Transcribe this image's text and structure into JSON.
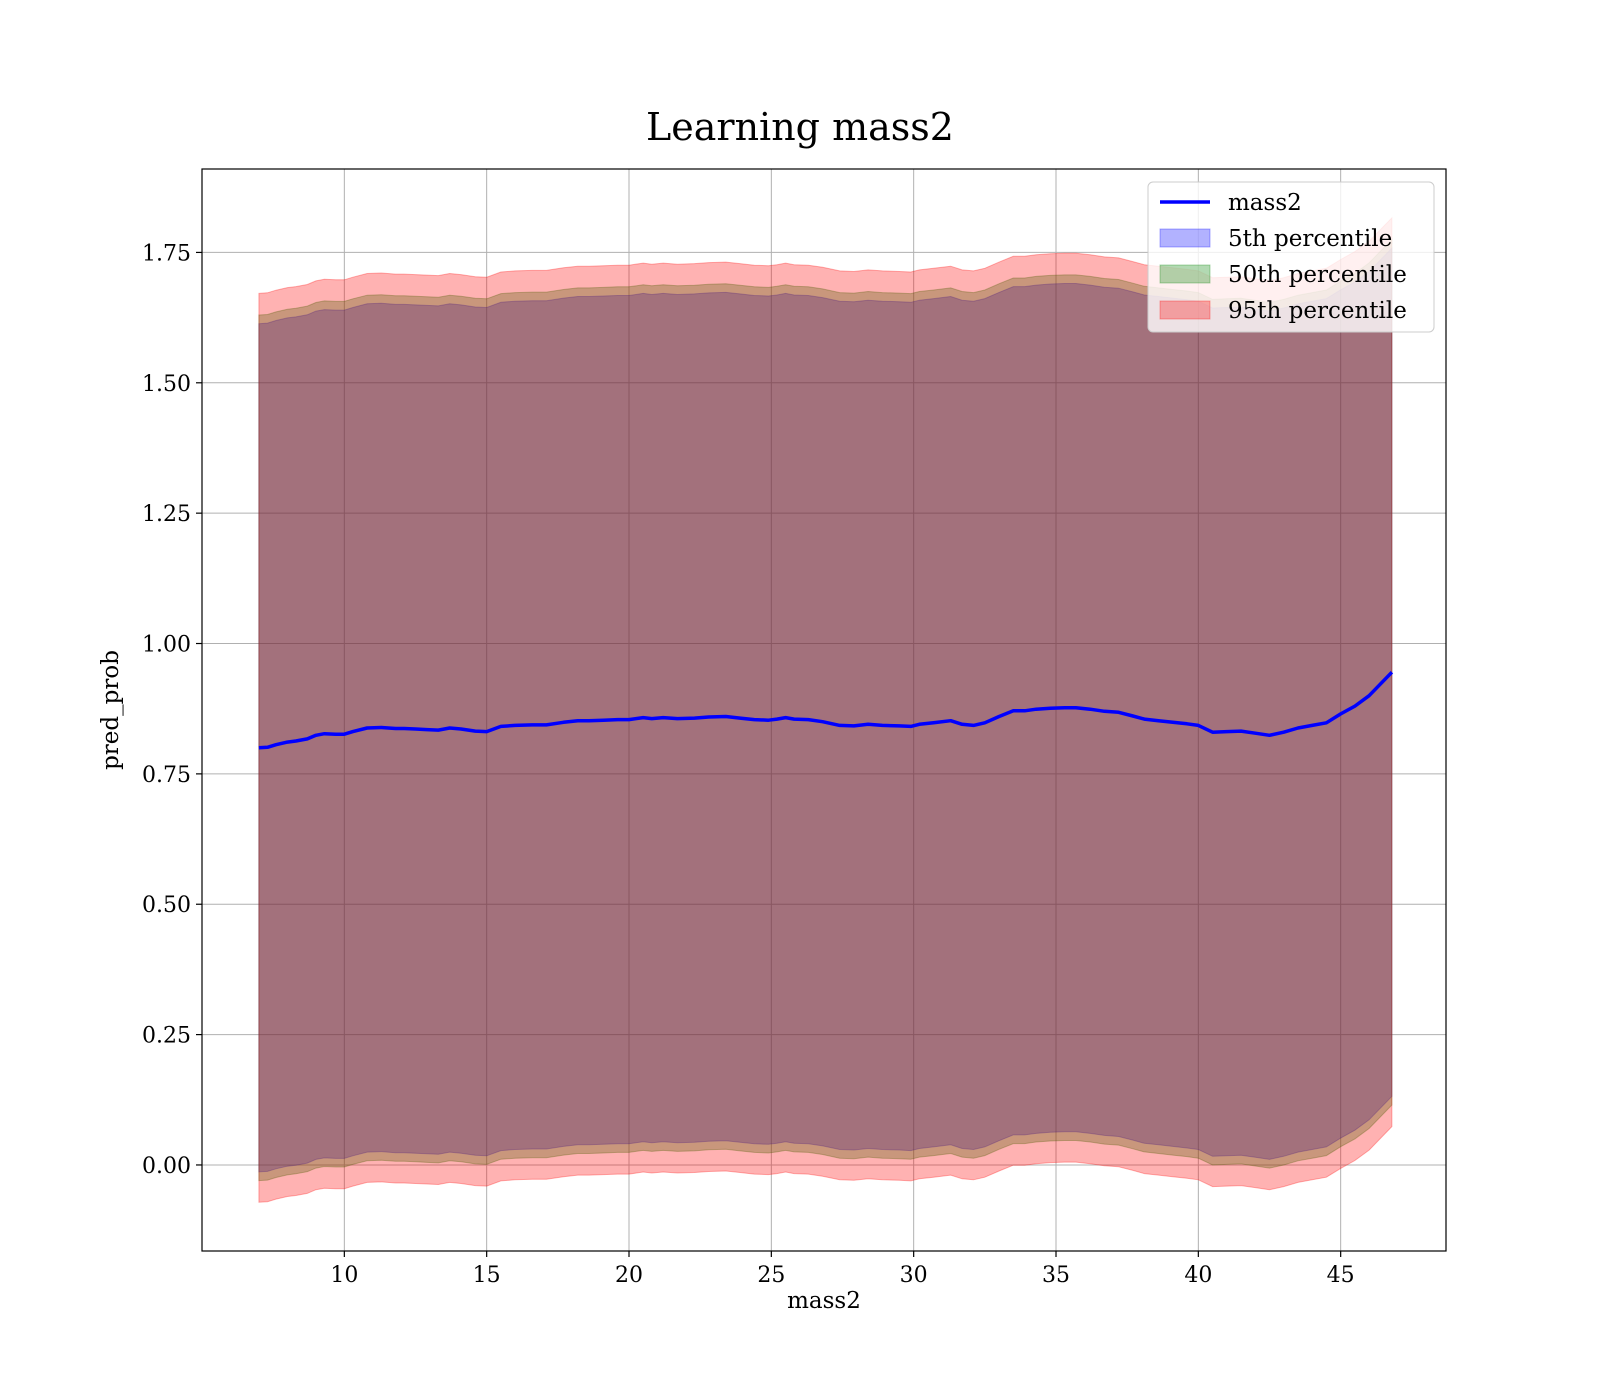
{
  "chart_data": {
    "type": "area",
    "title": "Learning mass2",
    "xlabel": "mass2",
    "ylabel": "pred_prob",
    "xlim": [
      5.0,
      48.7
    ],
    "ylim": [
      -0.165,
      1.91
    ],
    "xticks": [
      10,
      15,
      20,
      25,
      30,
      35,
      40,
      45
    ],
    "yticks": [
      0.0,
      0.25,
      0.5,
      0.75,
      1.0,
      1.25,
      1.5,
      1.75
    ],
    "ytick_labels": [
      "0.00",
      "0.25",
      "0.50",
      "0.75",
      "1.00",
      "1.25",
      "1.50",
      "1.75"
    ],
    "grid": true,
    "legend_position": "top-right",
    "x": [
      7.0,
      7.3,
      7.6,
      8.0,
      8.3,
      8.7,
      9.0,
      9.3,
      9.7,
      10.0,
      10.3,
      10.8,
      11.3,
      11.8,
      12.1,
      12.5,
      12.9,
      13.3,
      13.7,
      14.1,
      14.6,
      15.0,
      15.5,
      16.0,
      16.6,
      17.1,
      17.7,
      18.2,
      18.6,
      19.1,
      19.6,
      20.0,
      20.5,
      20.8,
      21.2,
      21.7,
      22.3,
      22.8,
      23.4,
      23.9,
      24.4,
      24.9,
      25.2,
      25.5,
      25.8,
      26.3,
      26.8,
      27.4,
      27.9,
      28.4,
      28.9,
      29.5,
      29.9,
      30.2,
      30.7,
      31.3,
      31.7,
      32.1,
      32.5,
      33.0,
      33.5,
      33.9,
      34.3,
      34.8,
      35.3,
      35.7,
      36.2,
      36.7,
      37.2,
      37.7,
      38.1,
      38.6,
      39.1,
      39.6,
      40.0,
      40.5,
      41.0,
      41.5,
      42.0,
      42.5,
      43.0,
      43.5,
      44.0,
      44.5,
      45.0,
      45.5,
      46.0,
      46.8
    ],
    "series": [
      {
        "name": "mass2",
        "color": "#0000ff",
        "values": [
          0.8,
          0.801,
          0.806,
          0.811,
          0.813,
          0.817,
          0.824,
          0.827,
          0.826,
          0.826,
          0.831,
          0.838,
          0.839,
          0.837,
          0.837,
          0.836,
          0.835,
          0.834,
          0.838,
          0.836,
          0.832,
          0.831,
          0.841,
          0.843,
          0.844,
          0.844,
          0.849,
          0.852,
          0.852,
          0.853,
          0.854,
          0.854,
          0.858,
          0.856,
          0.858,
          0.856,
          0.857,
          0.859,
          0.86,
          0.857,
          0.854,
          0.853,
          0.855,
          0.858,
          0.855,
          0.854,
          0.85,
          0.843,
          0.842,
          0.845,
          0.843,
          0.842,
          0.841,
          0.845,
          0.848,
          0.852,
          0.845,
          0.843,
          0.848,
          0.86,
          0.871,
          0.871,
          0.874,
          0.876,
          0.877,
          0.877,
          0.874,
          0.87,
          0.868,
          0.861,
          0.855,
          0.852,
          0.849,
          0.846,
          0.843,
          0.83,
          0.831,
          0.832,
          0.828,
          0.824,
          0.83,
          0.838,
          0.843,
          0.848,
          0.865,
          0.88,
          0.9,
          0.945
        ]
      }
    ],
    "bands": [
      {
        "name": "5th percentile",
        "color": "#0000ff",
        "opacity": 0.3
      },
      {
        "name": "50th percentile",
        "color": "#008000",
        "opacity": 0.3
      },
      {
        "name": "95th percentile",
        "color": "#ff0000",
        "opacity": 0.3
      }
    ]
  }
}
